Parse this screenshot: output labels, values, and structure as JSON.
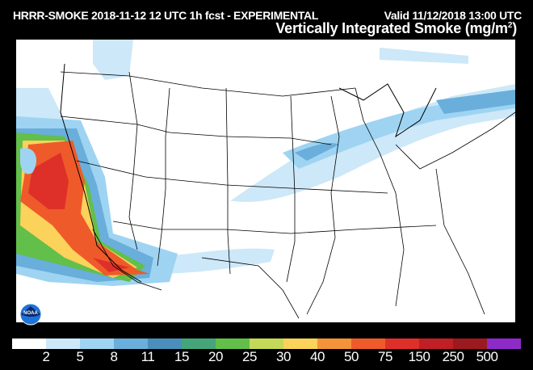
{
  "header": {
    "run_label": "HRRR-SMOKE 2018-11-12 12 UTC 1h fcst - EXPERIMENTAL",
    "valid_label": "Valid 11/12/2018 13:00 UTC",
    "title": "Vertically Integrated Smoke (mg/m",
    "title_sup": "2",
    "title_end": ")"
  },
  "logo": {
    "text": "NOAA",
    "icon": "noaa-logo"
  },
  "colorbar": {
    "colors": [
      "#ffffff",
      "#cde8f8",
      "#9ed4f2",
      "#6aaedb",
      "#4a8fbb",
      "#44a57a",
      "#62bf4a",
      "#c3d957",
      "#fbd25a",
      "#f5933a",
      "#ef5a2a",
      "#de3029",
      "#c01f26",
      "#9c1a1f",
      "#8e2bc8"
    ],
    "ticks": [
      "2",
      "5",
      "8",
      "11",
      "15",
      "20",
      "25",
      "30",
      "40",
      "50",
      "75",
      "150",
      "250",
      "500"
    ]
  }
}
